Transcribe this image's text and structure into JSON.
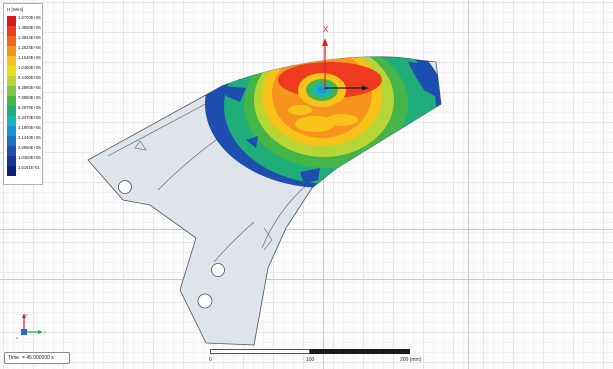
{
  "legend": {
    "title": "H [W/m]",
    "labels": [
      "1.6700E+06",
      "1.4850E+06",
      "1.3644E+06",
      "1.2534E+06",
      "1.1540E+06",
      "1.0450E+06",
      "9.4490E+05",
      "8.2860E+05",
      "7.8860E+05",
      "6.2970E+05",
      "5.3470E+05",
      "4.1900E+05",
      "3.1440E+05",
      "2.0950E+05",
      "1.0450E+05",
      "1.0161E-01"
    ],
    "colors": [
      "#d7191c",
      "#ee3b20",
      "#f5671f",
      "#f7941d",
      "#f9c21a",
      "#e8de19",
      "#b7d534",
      "#7ec742",
      "#45b54a",
      "#1fae7a",
      "#19b5b5",
      "#1b95d3",
      "#1f6fc5",
      "#1d4eb0",
      "#1a3396",
      "#0f1f7a"
    ]
  },
  "axis": {
    "x_label": "X"
  },
  "triad": {
    "x_label": "x",
    "y_label": "y",
    "z_label": "z"
  },
  "time": {
    "label": "Time",
    "value": "= 45.000000 s"
  },
  "scale": {
    "labels": [
      "0",
      "100",
      "200 (mm)"
    ]
  }
}
